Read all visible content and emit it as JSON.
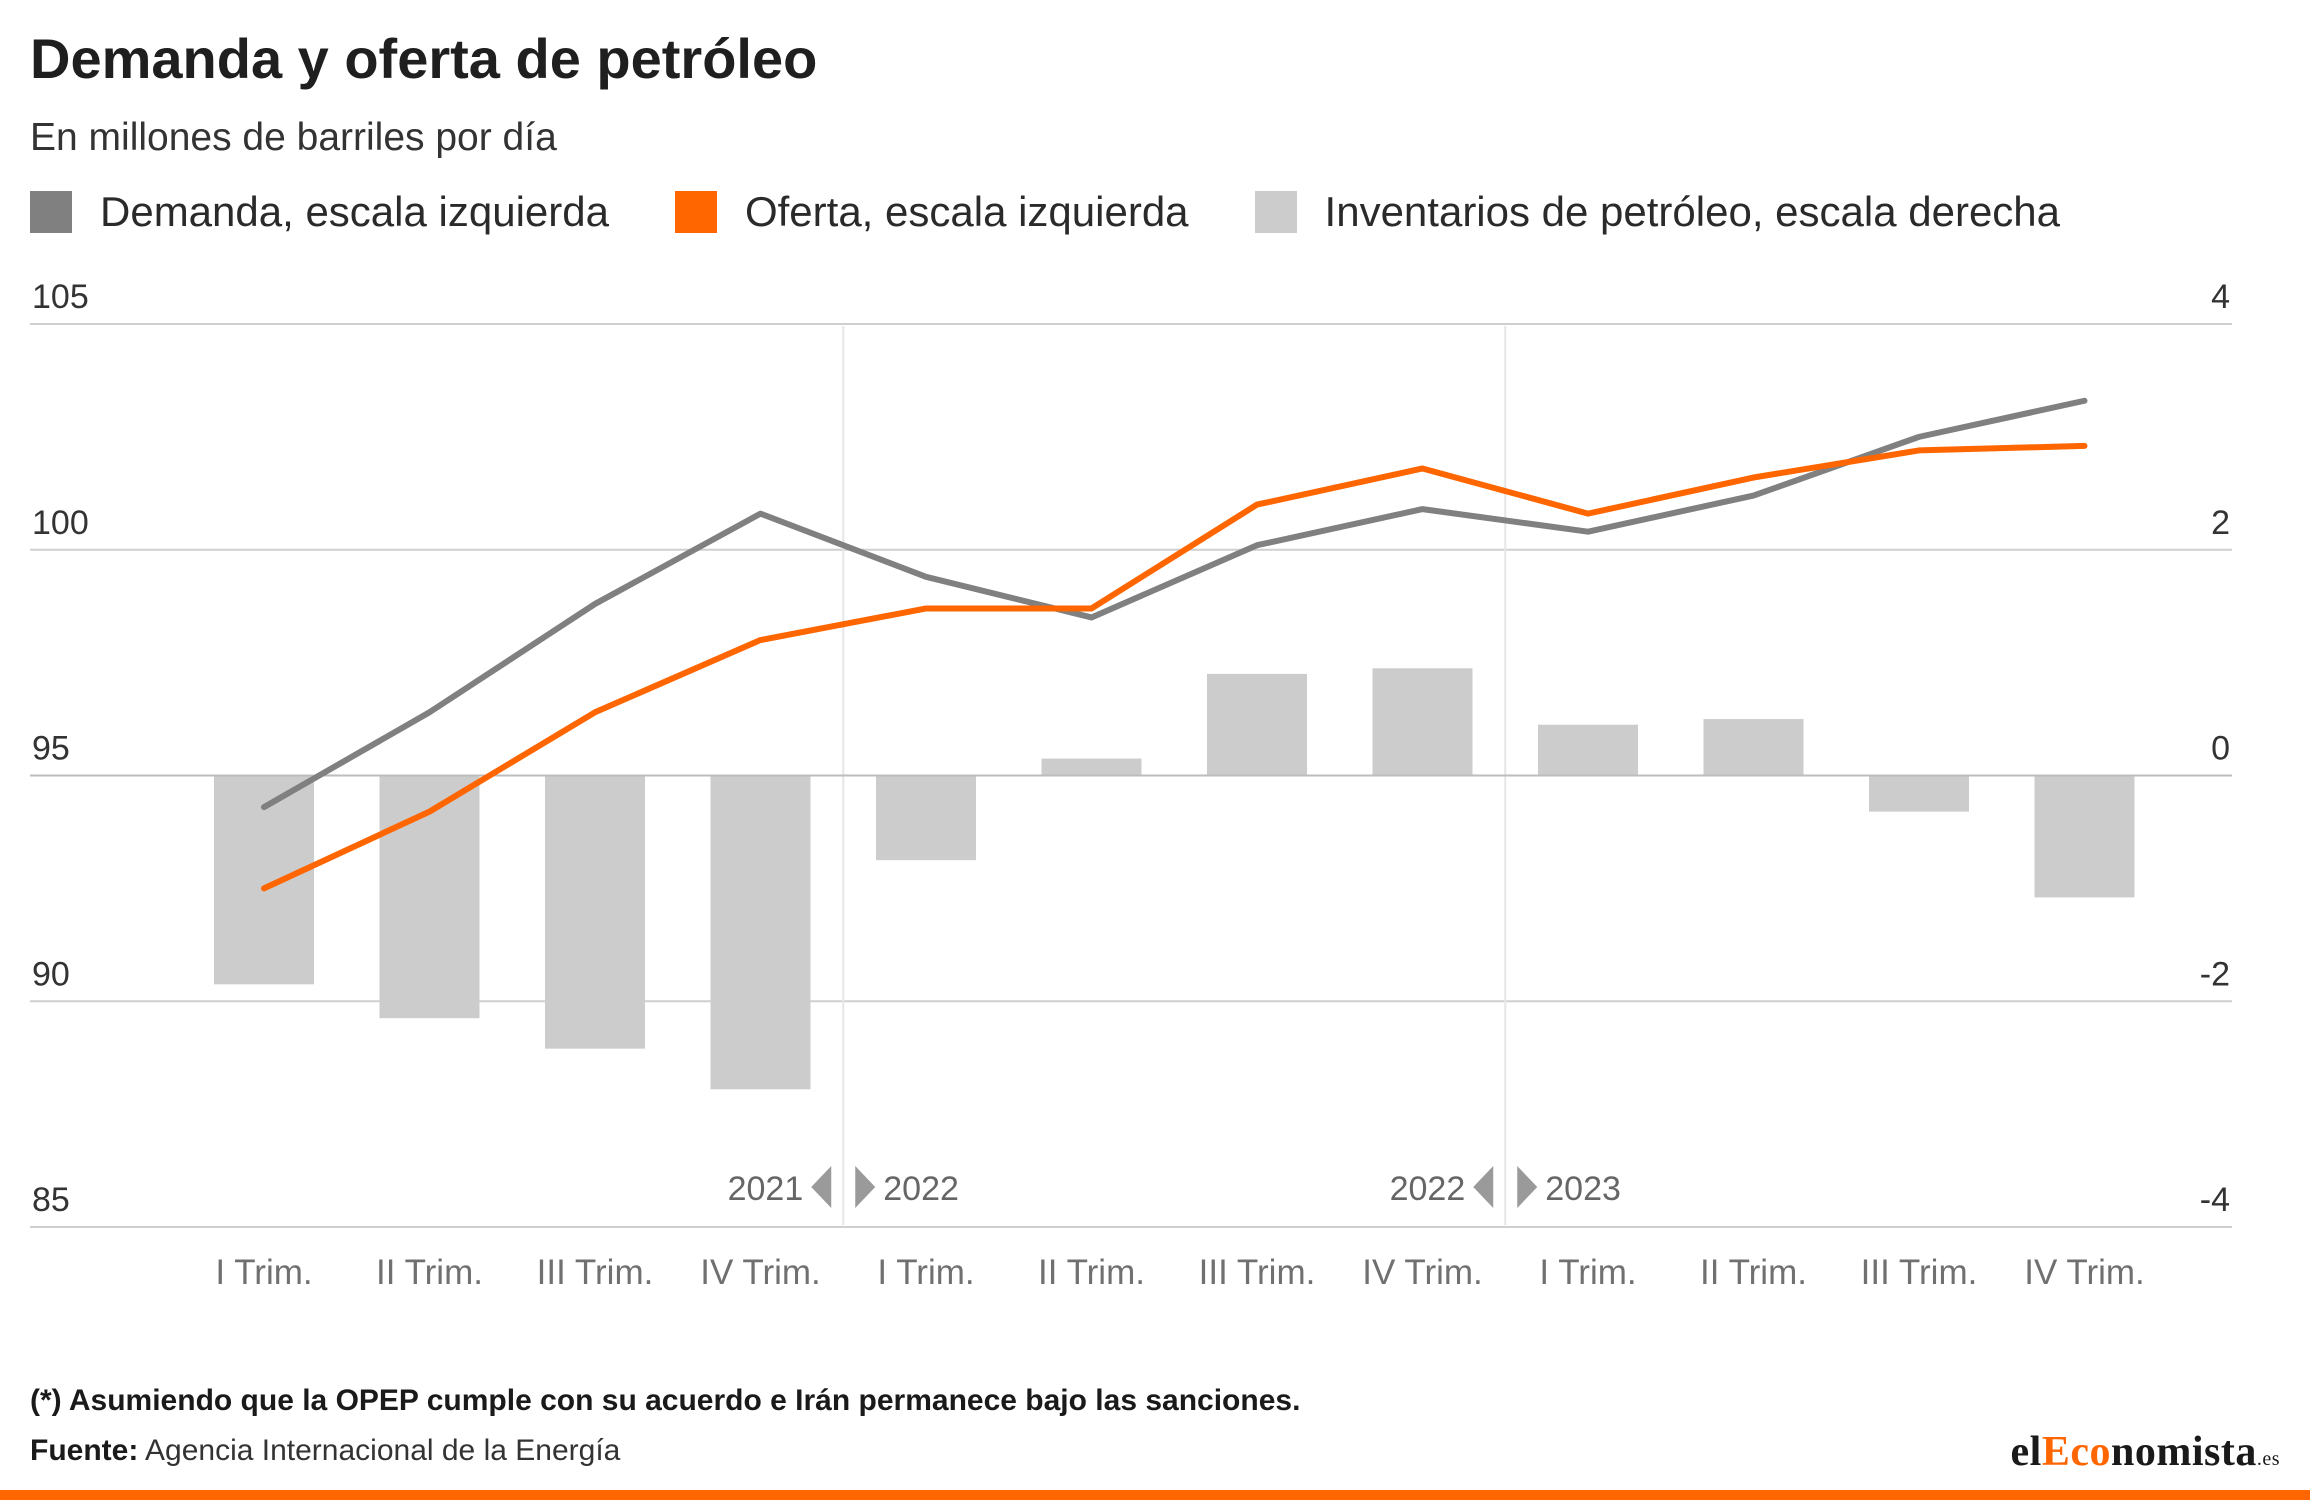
{
  "title": "Demanda y oferta de petróleo",
  "subtitle": "En millones de barriles por día",
  "legend": [
    {
      "label": "Demanda, escala izquierda",
      "color": "#808080"
    },
    {
      "label": "Oferta, escala izquierda",
      "color": "#ff6600"
    },
    {
      "label": "Inventarios de petróleo, escala derecha",
      "color": "#cccccc"
    }
  ],
  "chart_data": {
    "type": "bar+line",
    "categories": [
      "I Trim.",
      "II Trim.",
      "III Trim.",
      "IV Trim.",
      "I Trim.",
      "II Trim.",
      "III Trim.",
      "IV Trim.",
      "I Trim.",
      "II Trim.",
      "III Trim.",
      "IV Trim."
    ],
    "period_markers": [
      {
        "left": "2021",
        "right": "2022"
      },
      {
        "left": "2022",
        "right": "2023"
      }
    ],
    "y_left": {
      "ticks": [
        85,
        90,
        95,
        100,
        105
      ],
      "range": [
        85,
        105
      ]
    },
    "y_right": {
      "ticks": [
        -4,
        -2,
        0,
        2,
        4
      ],
      "range": [
        -4,
        4
      ]
    },
    "series": [
      {
        "name": "Demanda, escala izquierda",
        "kind": "line",
        "axis": "left",
        "color": "#808080",
        "values": [
          94.3,
          96.4,
          98.8,
          100.8,
          99.4,
          98.5,
          100.1,
          100.9,
          100.4,
          101.2,
          102.5,
          103.3
        ]
      },
      {
        "name": "Oferta, escala izquierda",
        "kind": "line",
        "axis": "left",
        "color": "#ff6600",
        "values": [
          92.5,
          94.2,
          96.4,
          98.0,
          98.7,
          98.7,
          101.0,
          101.8,
          100.8,
          101.6,
          102.2,
          102.3
        ]
      },
      {
        "name": "Inventarios de petróleo, escala derecha",
        "kind": "bar",
        "axis": "right",
        "color": "#cccccc",
        "values": [
          -1.85,
          -2.15,
          -2.42,
          -2.78,
          -0.75,
          0.15,
          0.9,
          0.95,
          0.45,
          0.5,
          -0.32,
          -1.08
        ]
      }
    ],
    "grid": true,
    "legend_position": "top-left"
  },
  "footnote": "(*) Asumiendo que la OPEP cumple con su acuerdo e Irán permanece bajo las sanciones.",
  "source_label": "Fuente:",
  "source_text": " Agencia Internacional de la Energía",
  "logo": {
    "pre": "el",
    "accent": "Eco",
    "post": "nomista",
    "tld": ".es"
  }
}
